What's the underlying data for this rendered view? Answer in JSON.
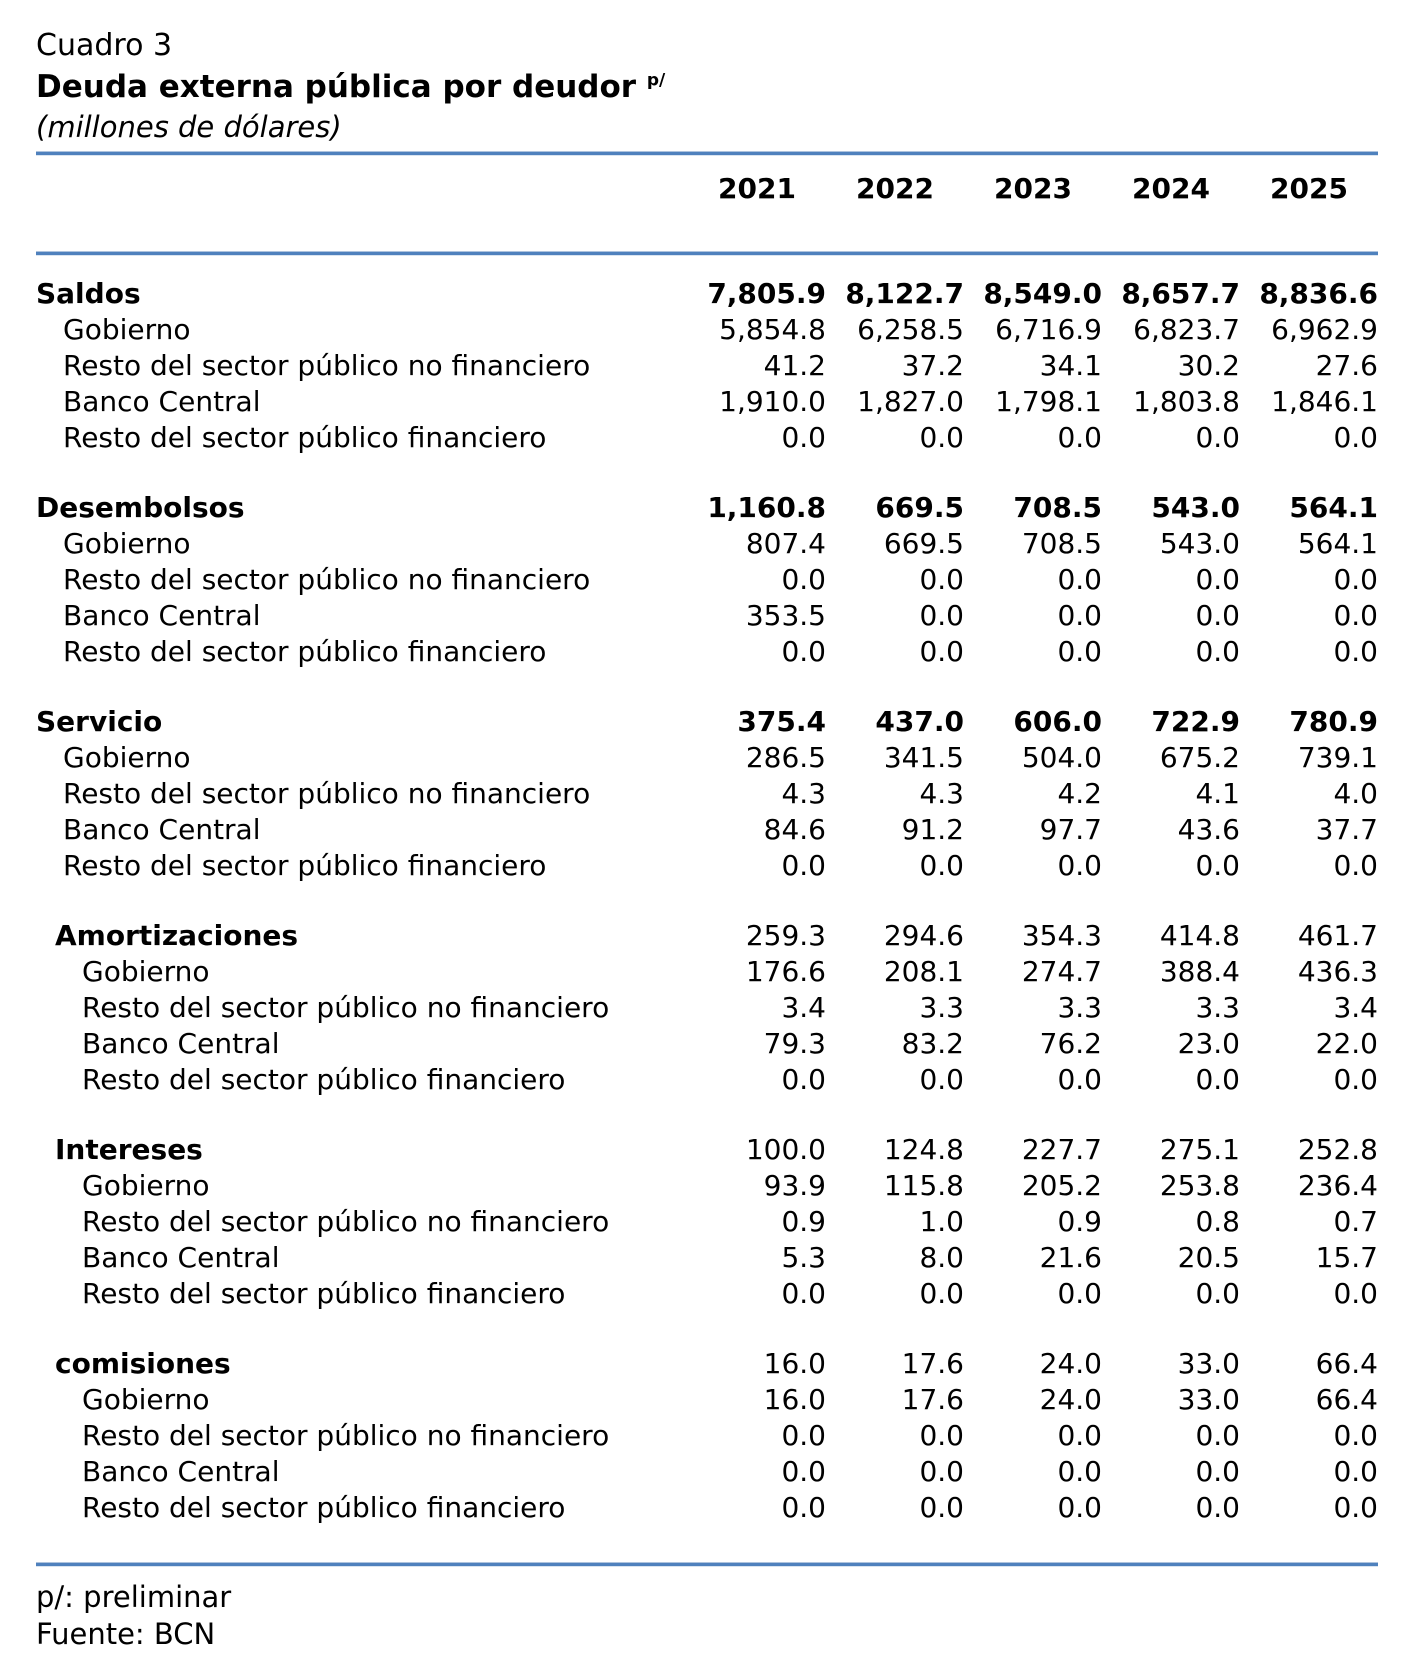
{
  "header": {
    "label": "Cuadro 3",
    "title": "Deuda externa pública por deudor",
    "title_note": "p/",
    "subtitle": "(millones de dólares)"
  },
  "colors": {
    "rule_blue": "#4f81bd",
    "text": "#000000",
    "background": "#ffffff"
  },
  "table": {
    "years": [
      "2021",
      "2022",
      "2023",
      "2024",
      "2025"
    ],
    "sections": [
      {
        "name": "Saldos",
        "level": 0,
        "bold_values": true,
        "values": [
          "7,805.9",
          "8,122.7",
          "8,549.0",
          "8,657.7",
          "8,836.6"
        ],
        "rows": [
          {
            "label": "Gobierno",
            "values": [
              "5,854.8",
              "6,258.5",
              "6,716.9",
              "6,823.7",
              "6,962.9"
            ]
          },
          {
            "label": "Resto del sector público no financiero",
            "values": [
              "41.2",
              "37.2",
              "34.1",
              "30.2",
              "27.6"
            ]
          },
          {
            "label": "Banco Central",
            "values": [
              "1,910.0",
              "1,827.0",
              "1,798.1",
              "1,803.8",
              "1,846.1"
            ]
          },
          {
            "label": "Resto del sector público financiero",
            "values": [
              "0.0",
              "0.0",
              "0.0",
              "0.0",
              "0.0"
            ]
          }
        ]
      },
      {
        "name": "Desembolsos",
        "level": 0,
        "bold_values": true,
        "values": [
          "1,160.8",
          "669.5",
          "708.5",
          "543.0",
          "564.1"
        ],
        "rows": [
          {
            "label": "Gobierno",
            "values": [
              "807.4",
              "669.5",
              "708.5",
              "543.0",
              "564.1"
            ]
          },
          {
            "label": "Resto del sector público no financiero",
            "values": [
              "0.0",
              "0.0",
              "0.0",
              "0.0",
              "0.0"
            ]
          },
          {
            "label": "Banco Central",
            "values": [
              "353.5",
              "0.0",
              "0.0",
              "0.0",
              "0.0"
            ]
          },
          {
            "label": "Resto del sector público financiero",
            "values": [
              "0.0",
              "0.0",
              "0.0",
              "0.0",
              "0.0"
            ]
          }
        ]
      },
      {
        "name": "Servicio",
        "level": 0,
        "bold_values": true,
        "values": [
          "375.4",
          "437.0",
          "606.0",
          "722.9",
          "780.9"
        ],
        "rows": [
          {
            "label": "Gobierno",
            "values": [
              "286.5",
              "341.5",
              "504.0",
              "675.2",
              "739.1"
            ]
          },
          {
            "label": "Resto del sector público no financiero",
            "values": [
              "4.3",
              "4.3",
              "4.2",
              "4.1",
              "4.0"
            ]
          },
          {
            "label": "Banco Central",
            "values": [
              "84.6",
              "91.2",
              "97.7",
              "43.6",
              "37.7"
            ]
          },
          {
            "label": "Resto del sector público financiero",
            "values": [
              "0.0",
              "0.0",
              "0.0",
              "0.0",
              "0.0"
            ]
          }
        ]
      },
      {
        "name": "Amortizaciones",
        "level": 1,
        "bold_values": false,
        "values": [
          "259.3",
          "294.6",
          "354.3",
          "414.8",
          "461.7"
        ],
        "rows": [
          {
            "label": "Gobierno",
            "values": [
              "176.6",
              "208.1",
              "274.7",
              "388.4",
              "436.3"
            ]
          },
          {
            "label": "Resto del sector público no financiero",
            "values": [
              "3.4",
              "3.3",
              "3.3",
              "3.3",
              "3.4"
            ]
          },
          {
            "label": "Banco Central",
            "values": [
              "79.3",
              "83.2",
              "76.2",
              "23.0",
              "22.0"
            ]
          },
          {
            "label": "Resto del sector público financiero",
            "values": [
              "0.0",
              "0.0",
              "0.0",
              "0.0",
              "0.0"
            ]
          }
        ]
      },
      {
        "name": "Intereses",
        "level": 1,
        "bold_values": false,
        "values": [
          "100.0",
          "124.8",
          "227.7",
          "275.1",
          "252.8"
        ],
        "rows": [
          {
            "label": "Gobierno",
            "values": [
              "93.9",
              "115.8",
              "205.2",
              "253.8",
              "236.4"
            ]
          },
          {
            "label": "Resto del sector público no financiero",
            "values": [
              "0.9",
              "1.0",
              "0.9",
              "0.8",
              "0.7"
            ]
          },
          {
            "label": "Banco Central",
            "values": [
              "5.3",
              "8.0",
              "21.6",
              "20.5",
              "15.7"
            ]
          },
          {
            "label": "Resto del sector público financiero",
            "values": [
              "0.0",
              "0.0",
              "0.0",
              "0.0",
              "0.0"
            ]
          }
        ]
      },
      {
        "name": "comisiones",
        "level": 1,
        "bold_values": false,
        "values": [
          "16.0",
          "17.6",
          "24.0",
          "33.0",
          "66.4"
        ],
        "rows": [
          {
            "label": "Gobierno",
            "values": [
              "16.0",
              "17.6",
              "24.0",
              "33.0",
              "66.4"
            ]
          },
          {
            "label": "Resto del sector público no financiero",
            "values": [
              "0.0",
              "0.0",
              "0.0",
              "0.0",
              "0.0"
            ]
          },
          {
            "label": "Banco Central",
            "values": [
              "0.0",
              "0.0",
              "0.0",
              "0.0",
              "0.0"
            ]
          },
          {
            "label": "Resto del sector público financiero",
            "values": [
              "0.0",
              "0.0",
              "0.0",
              "0.0",
              "0.0"
            ]
          }
        ]
      }
    ]
  },
  "footer": {
    "note": "p/: preliminar",
    "source": "Fuente: BCN"
  }
}
